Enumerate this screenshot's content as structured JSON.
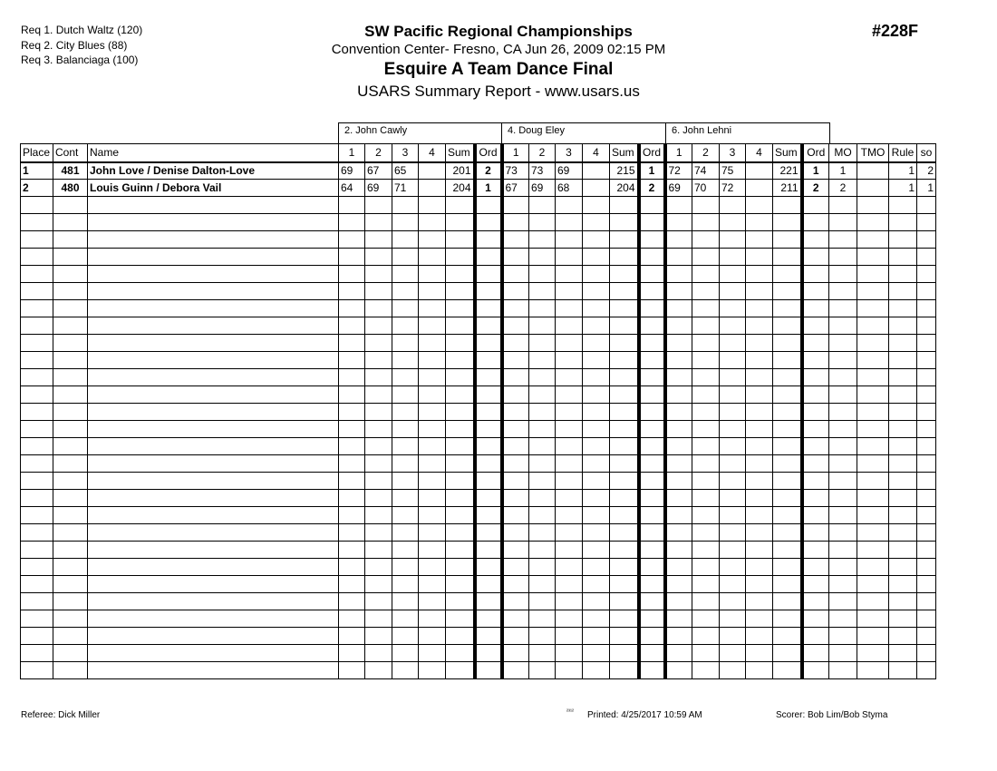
{
  "requirements": [
    "Req  1.  Dutch Waltz (120)",
    "Req  2.  City Blues (88)",
    "Req  3.  Balanciaga (100)"
  ],
  "header": {
    "title": "SW Pacific Regional Championships",
    "venue": "Convention Center- Fresno, CA  Jun 26, 2009  02:15 PM",
    "event": "Esquire A Team  Dance Final",
    "report": "USARS Summary Report - www.usars.us",
    "number": "#228F"
  },
  "judges": [
    "2.  John  Cawly",
    "4.  Doug Eley",
    "6.  John Lehni"
  ],
  "columns": {
    "place": "Place",
    "cont": "Cont",
    "name": "Name",
    "scores": [
      "1",
      "2",
      "3",
      "4",
      "Sum",
      "Ord"
    ],
    "mo": "MO",
    "tmo": "TMO",
    "rule": "Rule",
    "so": "so"
  },
  "rows": [
    {
      "place": "1",
      "cont": "481",
      "name": "John Love / Denise Dalton-Love",
      "judges": [
        [
          "69",
          "67",
          "65",
          "",
          "201",
          "2"
        ],
        [
          "73",
          "73",
          "69",
          "",
          "215",
          "1"
        ],
        [
          "72",
          "74",
          "75",
          "",
          "221",
          "1"
        ]
      ],
      "mo": "1",
      "tmo": "",
      "rule": "1",
      "so": "2"
    },
    {
      "place": "2",
      "cont": "480",
      "name": "Louis Guinn / Debora Vail",
      "judges": [
        [
          "64",
          "69",
          "71",
          "",
          "204",
          "1"
        ],
        [
          "67",
          "69",
          "68",
          "",
          "204",
          "2"
        ],
        [
          "69",
          "70",
          "72",
          "",
          "211",
          "2"
        ]
      ],
      "mo": "2",
      "tmo": "",
      "rule": "1",
      "so": "1"
    }
  ],
  "footer": {
    "referee": "Referee:  Dick Miller",
    "code": "²³¹²",
    "printed": "Printed:  4/25/2017  10:59 AM",
    "scorer": "Scorer:   Bob Lim/Bob Styma"
  }
}
